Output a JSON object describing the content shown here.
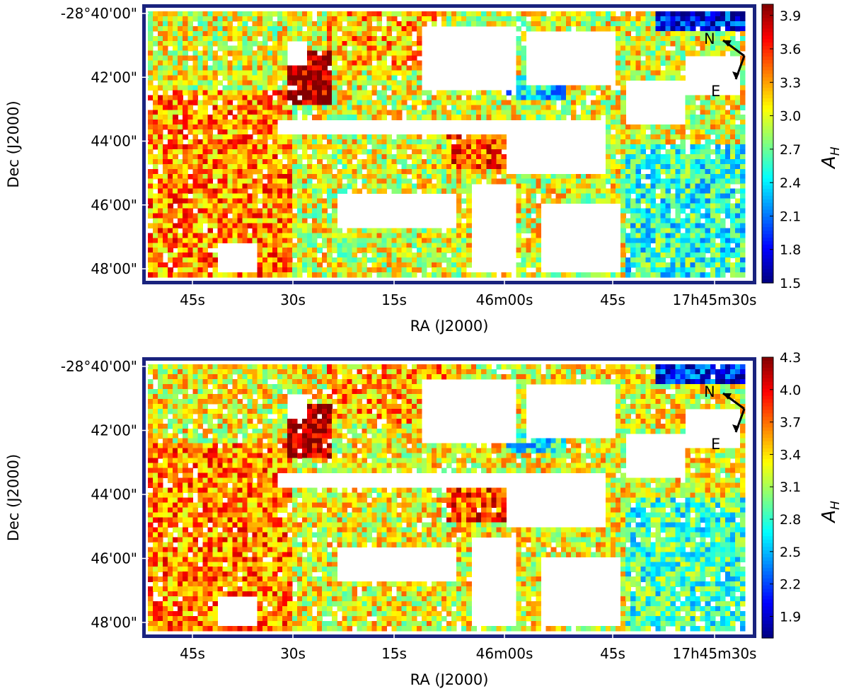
{
  "chart_data": [
    {
      "type": "heatmap",
      "xlabel": "RA (J2000)",
      "ylabel": "Dec (J2000)",
      "x_tick_labels": [
        "45s",
        "30s",
        "15s",
        "46m00s",
        "45s",
        "17h45m30s"
      ],
      "y_tick_labels": [
        "-28°40'00\"",
        "42'00\"",
        "44'00\"",
        "46'00\"",
        "48'00\""
      ],
      "colorbar": {
        "label": "A_H",
        "min": 1.5,
        "max": 4.0,
        "ticks": [
          "3.9",
          "3.6",
          "3.3",
          "3.0",
          "2.7",
          "2.4",
          "2.1",
          "1.8",
          "1.5"
        ],
        "colormap": "jet"
      },
      "compass": {
        "north": "N",
        "east": "E"
      },
      "typical_value": 3.0
    },
    {
      "type": "heatmap",
      "xlabel": "RA (J2000)",
      "ylabel": "Dec (J2000)",
      "x_tick_labels": [
        "45s",
        "30s",
        "15s",
        "46m00s",
        "45s",
        "17h45m30s"
      ],
      "y_tick_labels": [
        "-28°40'00\"",
        "42'00\"",
        "44'00\"",
        "46'00\"",
        "48'00\""
      ],
      "colorbar": {
        "label": "A_H",
        "min": 1.7,
        "max": 4.3,
        "ticks": [
          "4.3",
          "4.0",
          "3.7",
          "3.4",
          "3.1",
          "2.8",
          "2.5",
          "2.2",
          "1.9"
        ],
        "colormap": "jet"
      },
      "compass": {
        "north": "N",
        "east": "E"
      },
      "typical_value": 3.3
    }
  ]
}
